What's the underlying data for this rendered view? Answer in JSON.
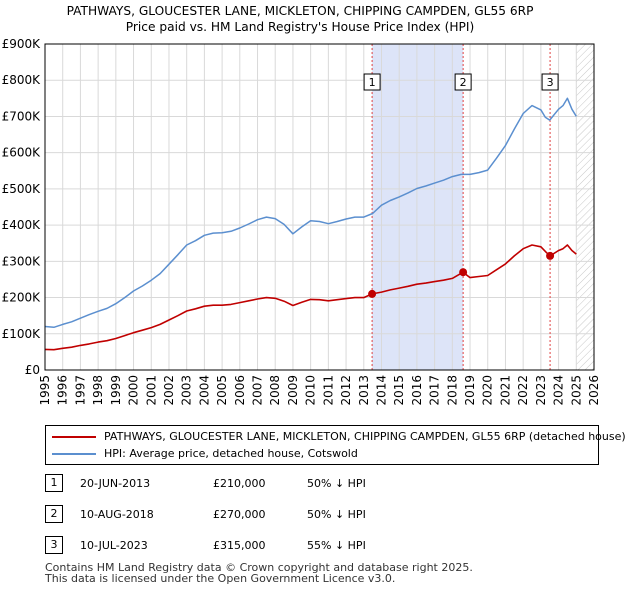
{
  "titles": {
    "line1": "PATHWAYS, GLOUCESTER LANE, MICKLETON, CHIPPING CAMPDEN, GL55 6RP",
    "line2": "Price paid vs. HM Land Registry's House Price Index (HPI)"
  },
  "chart_data": {
    "type": "line",
    "title": "Price paid vs. HM Land Registry's House Price Index (HPI)",
    "xlabel": "",
    "ylabel": "",
    "xlim": [
      1995,
      2026
    ],
    "ylim": [
      0,
      900000
    ],
    "grid": true,
    "y_ticks": [
      {
        "value": 0,
        "label": "£0"
      },
      {
        "value": 100000,
        "label": "£100K"
      },
      {
        "value": 200000,
        "label": "£200K"
      },
      {
        "value": 300000,
        "label": "£300K"
      },
      {
        "value": 400000,
        "label": "£400K"
      },
      {
        "value": 500000,
        "label": "£500K"
      },
      {
        "value": 600000,
        "label": "£600K"
      },
      {
        "value": 700000,
        "label": "£700K"
      },
      {
        "value": 800000,
        "label": "£800K"
      },
      {
        "value": 900000,
        "label": "£900K"
      }
    ],
    "x_ticks": [
      1995,
      1996,
      1997,
      1998,
      1999,
      2000,
      2001,
      2002,
      2003,
      2004,
      2005,
      2006,
      2007,
      2008,
      2009,
      2010,
      2011,
      2012,
      2013,
      2014,
      2015,
      2016,
      2017,
      2018,
      2019,
      2020,
      2021,
      2022,
      2023,
      2024,
      2025,
      2026
    ],
    "shaded_region": {
      "from": 2013.47,
      "to": 2018.61,
      "color": "#dde4f8"
    },
    "future_region": {
      "from": 2025.0,
      "to": 2026.0
    },
    "series": [
      {
        "name": "HPI: Average price, detached house, Cotswold",
        "color": "#5b8fcf",
        "x": [
          1995,
          1995.5,
          1996,
          1996.5,
          1997,
          1997.5,
          1998,
          1998.5,
          1999,
          1999.5,
          2000,
          2000.5,
          2001,
          2001.5,
          2002,
          2002.5,
          2003,
          2003.5,
          2004,
          2004.5,
          2005,
          2005.5,
          2006,
          2006.5,
          2007,
          2007.5,
          2008,
          2008.5,
          2009,
          2009.5,
          2010,
          2010.5,
          2011,
          2011.5,
          2012,
          2012.5,
          2013,
          2013.5,
          2014,
          2014.5,
          2015,
          2015.5,
          2016,
          2016.5,
          2017,
          2017.5,
          2018,
          2018.5,
          2019,
          2019.5,
          2020,
          2020.5,
          2021,
          2021.5,
          2022,
          2022.5,
          2023,
          2023.25,
          2023.5,
          2024,
          2024.25,
          2024.5,
          2024.75,
          2025
        ],
        "values": [
          120000,
          118000,
          126000,
          133000,
          143000,
          153000,
          162000,
          170000,
          183000,
          200000,
          218000,
          232000,
          248000,
          266000,
          292000,
          318000,
          345000,
          357000,
          372000,
          378000,
          379000,
          383000,
          392000,
          403000,
          415000,
          422000,
          418000,
          402000,
          376000,
          395000,
          412000,
          410000,
          404000,
          410000,
          417000,
          422000,
          422000,
          432000,
          455000,
          468000,
          478000,
          489000,
          501000,
          508000,
          516000,
          524000,
          534000,
          540000,
          540000,
          545000,
          552000,
          585000,
          620000,
          665000,
          708000,
          730000,
          718000,
          698000,
          690000,
          720000,
          730000,
          750000,
          720000,
          700000
        ]
      },
      {
        "name": "PATHWAYS, GLOUCESTER LANE, MICKLETON, CHIPPING CAMPDEN, GL55 6RP (detached house)",
        "color": "#c00000",
        "x": [
          1995,
          1995.5,
          1996,
          1996.5,
          1997,
          1997.5,
          1998,
          1998.5,
          1999,
          1999.5,
          2000,
          2000.5,
          2001,
          2001.5,
          2002,
          2002.5,
          2003,
          2003.5,
          2004,
          2004.5,
          2005,
          2005.5,
          2006,
          2006.5,
          2007,
          2007.5,
          2008,
          2008.5,
          2009,
          2009.5,
          2010,
          2010.5,
          2011,
          2011.5,
          2012,
          2012.5,
          2013,
          2013.47,
          2014,
          2014.5,
          2015,
          2015.5,
          2016,
          2016.5,
          2017,
          2017.5,
          2018,
          2018.61,
          2019,
          2019.5,
          2020,
          2020.5,
          2021,
          2021.5,
          2022,
          2022.5,
          2023,
          2023.3,
          2023.52,
          2024,
          2024.25,
          2024.5,
          2024.75,
          2025
        ],
        "values": [
          57000,
          56000,
          60000,
          63000,
          68000,
          72000,
          77000,
          81000,
          87000,
          95000,
          103000,
          110000,
          117000,
          126000,
          138000,
          150000,
          163000,
          169000,
          176000,
          179000,
          179000,
          181000,
          186000,
          191000,
          196000,
          200000,
          198000,
          190000,
          178000,
          187000,
          195000,
          194000,
          191000,
          194000,
          197000,
          200000,
          200000,
          210000,
          215000,
          221000,
          226000,
          231000,
          237000,
          240000,
          244000,
          248000,
          253000,
          270000,
          255000,
          258000,
          261000,
          277000,
          293000,
          315000,
          335000,
          345000,
          340000,
          325000,
          315000,
          330000,
          335000,
          345000,
          330000,
          320000
        ]
      }
    ],
    "sales": [
      {
        "id": "1",
        "x": 2013.47,
        "value": 210000
      },
      {
        "id": "2",
        "x": 2018.61,
        "value": 270000
      },
      {
        "id": "3",
        "x": 2023.52,
        "value": 315000
      }
    ]
  },
  "legend": {
    "property_label": "PATHWAYS, GLOUCESTER LANE, MICKLETON, CHIPPING CAMPDEN, GL55 6RP (detached house)",
    "property_color": "#c00000",
    "hpi_label": "HPI: Average price, detached house, Cotswold",
    "hpi_color": "#5b8fcf"
  },
  "sales_table": [
    {
      "num": "1",
      "date": "20-JUN-2013",
      "price": "£210,000",
      "hpi": "50% ↓ HPI"
    },
    {
      "num": "2",
      "date": "10-AUG-2018",
      "price": "£270,000",
      "hpi": "50% ↓ HPI"
    },
    {
      "num": "3",
      "date": "10-JUL-2023",
      "price": "£315,000",
      "hpi": "55% ↓ HPI"
    }
  ],
  "footer": {
    "line1": "Contains HM Land Registry data © Crown copyright and database right 2025.",
    "line2": "This data is licensed under the Open Government Licence v3.0."
  }
}
